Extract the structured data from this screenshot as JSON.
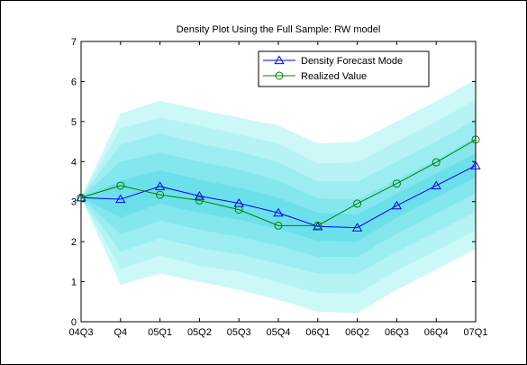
{
  "chart_data": {
    "type": "line",
    "title": "Density Plot Using the Full Sample: RW model",
    "xlabel": "",
    "ylabel": "",
    "categories": [
      "04Q3",
      "Q4",
      "05Q1",
      "05Q2",
      "05Q3",
      "05Q4",
      "06Q1",
      "06Q2",
      "06Q3",
      "06Q4",
      "07Q1"
    ],
    "ylim": [
      0,
      7
    ],
    "yticks": [
      "0",
      "1",
      "2",
      "3",
      "4",
      "5",
      "6",
      "7"
    ],
    "grid": false,
    "legend_position": "top-right",
    "series": [
      {
        "name": "Density Forecast Mode",
        "color": "#0000ff",
        "marker": "triangle",
        "values": [
          3.1,
          3.06,
          3.38,
          3.14,
          2.96,
          2.72,
          2.38,
          2.35,
          2.9,
          3.4,
          3.9
        ]
      },
      {
        "name": "Realized Value",
        "color": "#008000",
        "marker": "circle",
        "values": [
          3.1,
          3.4,
          3.17,
          3.03,
          2.8,
          2.4,
          2.4,
          2.95,
          3.45,
          3.98,
          4.55
        ]
      }
    ],
    "fan_bands": {
      "colors": [
        "#cdf8f8",
        "#b5f3f5",
        "#9cedf1",
        "#84e7ee",
        "#6ce0ea"
      ],
      "upper": [
        [
          3.1,
          5.2,
          5.52,
          5.3,
          5.1,
          4.9,
          4.45,
          4.5,
          5.0,
          5.5,
          6.05
        ],
        [
          3.1,
          4.82,
          5.1,
          4.9,
          4.68,
          4.45,
          3.95,
          3.98,
          4.5,
          5.0,
          5.55
        ],
        [
          3.1,
          4.42,
          4.7,
          4.45,
          4.25,
          3.98,
          3.5,
          3.5,
          4.0,
          4.5,
          5.05
        ],
        [
          3.1,
          4.0,
          4.22,
          4.0,
          3.8,
          3.52,
          3.08,
          3.05,
          3.55,
          4.05,
          4.6
        ],
        [
          3.1,
          3.52,
          3.78,
          3.55,
          3.35,
          3.1,
          2.72,
          2.68,
          3.2,
          3.7,
          4.2
        ]
      ],
      "lower": [
        [
          3.1,
          0.92,
          1.2,
          1.0,
          0.8,
          0.55,
          0.25,
          0.22,
          0.8,
          1.3,
          1.82
        ],
        [
          3.1,
          1.32,
          1.65,
          1.4,
          1.25,
          0.98,
          0.72,
          0.7,
          1.28,
          1.78,
          2.28
        ],
        [
          3.1,
          1.75,
          2.08,
          1.85,
          1.68,
          1.45,
          1.2,
          1.2,
          1.75,
          2.25,
          2.75
        ],
        [
          3.1,
          2.18,
          2.52,
          2.3,
          2.12,
          1.9,
          1.62,
          1.62,
          2.2,
          2.7,
          3.2
        ],
        [
          3.1,
          2.6,
          2.95,
          2.72,
          2.55,
          2.32,
          2.02,
          2.0,
          2.6,
          3.1,
          3.6
        ]
      ]
    }
  }
}
